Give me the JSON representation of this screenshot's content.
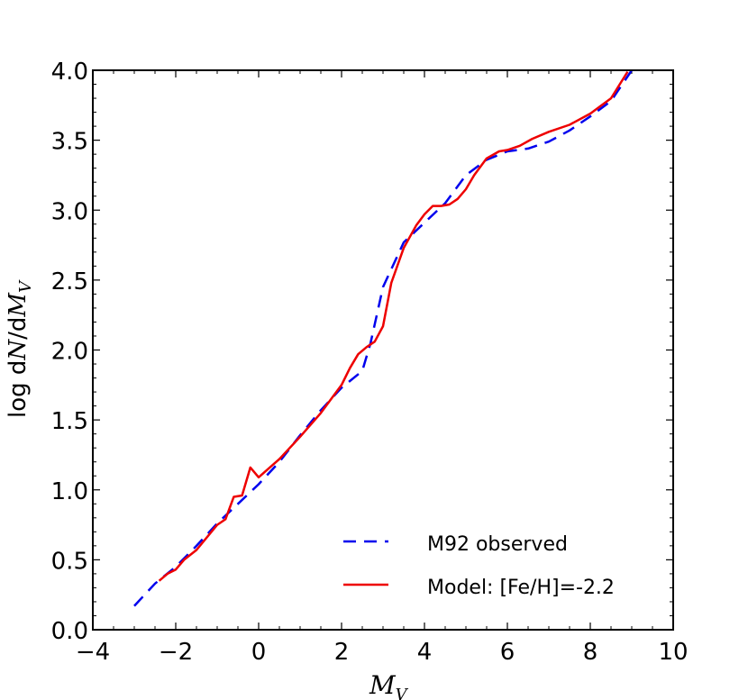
{
  "chart_data": {
    "type": "line",
    "title": "",
    "xlabel": "M_V",
    "ylabel": "log dN/dM_V",
    "xlabel_parts": {
      "main": "M",
      "sub": "V"
    },
    "ylabel_parts": {
      "prefix": "log d",
      "n": "N",
      "mid": "/d",
      "m": "M",
      "sub": "V"
    },
    "xlim": [
      -4,
      10
    ],
    "ylim": [
      0.0,
      4.0
    ],
    "x_ticks": [
      -4,
      -2,
      0,
      2,
      4,
      6,
      8,
      10
    ],
    "x_tick_labels": [
      "−4",
      "−2",
      "0",
      "2",
      "4",
      "6",
      "8",
      "10"
    ],
    "y_ticks": [
      0.0,
      0.5,
      1.0,
      1.5,
      2.0,
      2.5,
      3.0,
      3.5,
      4.0
    ],
    "y_tick_labels": [
      "0.0",
      "0.5",
      "1.0",
      "1.5",
      "2.0",
      "2.5",
      "3.0",
      "3.5",
      "4.0"
    ],
    "grid": false,
    "legend_position": "lower-right",
    "series": [
      {
        "name": "M92 observed",
        "color": "#0000ee",
        "style": "dashed",
        "x": [
          -3.0,
          -2.5,
          -2.0,
          -1.5,
          -1.0,
          -0.5,
          0.0,
          0.5,
          1.0,
          1.5,
          2.0,
          2.5,
          2.7,
          3.0,
          3.5,
          4.0,
          4.5,
          5.0,
          5.5,
          6.0,
          6.5,
          7.0,
          7.5,
          8.0,
          8.5,
          9.0
        ],
        "y": [
          0.17,
          0.33,
          0.45,
          0.6,
          0.76,
          0.9,
          1.04,
          1.2,
          1.39,
          1.57,
          1.73,
          1.85,
          2.05,
          2.45,
          2.77,
          2.91,
          3.05,
          3.25,
          3.36,
          3.42,
          3.44,
          3.49,
          3.57,
          3.67,
          3.78,
          4.0
        ]
      },
      {
        "name": "Model: [Fe/H]=-2.2",
        "color": "#ee0000",
        "style": "solid",
        "x": [
          -2.4,
          -2.2,
          -2.0,
          -1.8,
          -1.5,
          -1.0,
          -0.8,
          -0.6,
          -0.4,
          -0.2,
          0.0,
          0.5,
          1.0,
          1.5,
          2.0,
          2.2,
          2.4,
          2.6,
          2.8,
          3.0,
          3.2,
          3.5,
          3.8,
          4.0,
          4.2,
          4.4,
          4.6,
          4.8,
          5.0,
          5.2,
          5.5,
          5.8,
          6.0,
          6.3,
          6.6,
          7.0,
          7.5,
          8.0,
          8.5,
          8.9
        ],
        "y": [
          0.35,
          0.4,
          0.43,
          0.5,
          0.57,
          0.75,
          0.79,
          0.95,
          0.96,
          1.16,
          1.09,
          1.22,
          1.38,
          1.55,
          1.75,
          1.87,
          1.97,
          2.02,
          2.06,
          2.17,
          2.48,
          2.73,
          2.89,
          2.97,
          3.03,
          3.03,
          3.04,
          3.08,
          3.15,
          3.25,
          3.37,
          3.42,
          3.43,
          3.46,
          3.51,
          3.56,
          3.61,
          3.69,
          3.8,
          3.99
        ]
      }
    ]
  }
}
